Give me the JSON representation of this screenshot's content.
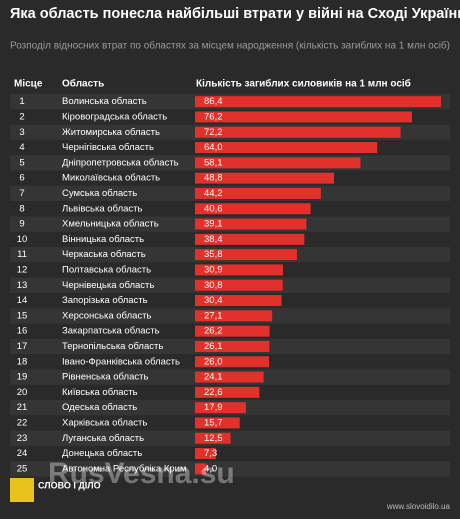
{
  "chart_data": {
    "type": "bar",
    "orientation": "horizontal",
    "title": "Яка область понесла найбільші втрати у війні на Сході України",
    "subtitle": "Розподіл відносних втрат по областях за місцем народження (кількість загиблих на 1 млн осіб)",
    "rank_header": "Місце",
    "category_header": "Область",
    "value_header": "Кількість загиблих силовиків на 1 млн осіб",
    "ranks": [
      1,
      2,
      3,
      4,
      5,
      6,
      7,
      8,
      9,
      10,
      11,
      12,
      13,
      14,
      15,
      16,
      17,
      18,
      19,
      20,
      21,
      22,
      23,
      24,
      25
    ],
    "categories": [
      "Волинська область",
      "Кіровоградська область",
      "Житомирська область",
      "Чернігівська область",
      "Дніпропетровська область",
      "Миколаївська область",
      "Сумська область",
      "Львівська область",
      "Хмельницька область",
      "Вінницька область",
      "Черкаська область",
      "Полтавська область",
      "Чернівецька область",
      "Запорізька область",
      "Херсонська область",
      "Закарпатська область",
      "Тернопільська область",
      "Івано-Франківська область",
      "Рівненська область",
      "Київська область",
      "Одеська область",
      "Харківська область",
      "Луганська область",
      "Донецька область",
      "Автономна Республіка Крим"
    ],
    "values": [
      86.4,
      76.2,
      72.2,
      64.0,
      58.1,
      48.8,
      44.2,
      40.6,
      39.1,
      38.4,
      35.8,
      30.9,
      30.8,
      30.4,
      27.1,
      26.2,
      26.1,
      26.0,
      24.1,
      22.6,
      17.9,
      15.7,
      12.5,
      7.3,
      4.0
    ],
    "value_labels": [
      "86,4",
      "76,2",
      "72,2",
      "64,0",
      "58,1",
      "48,8",
      "44,2",
      "40,6",
      "39,1",
      "38,4",
      "35,8",
      "30,9",
      "30,8",
      "30,4",
      "27,1",
      "26,2",
      "26,1",
      "26,0",
      "24,1",
      "22,6",
      "17,9",
      "15,7",
      "12,5",
      "7,3",
      "4,0"
    ],
    "color": "#e2312b",
    "logo": "СЛОВО І ДІЛО",
    "website": "www.slovoidilo.ua",
    "watermark": "RusVesna.su"
  }
}
